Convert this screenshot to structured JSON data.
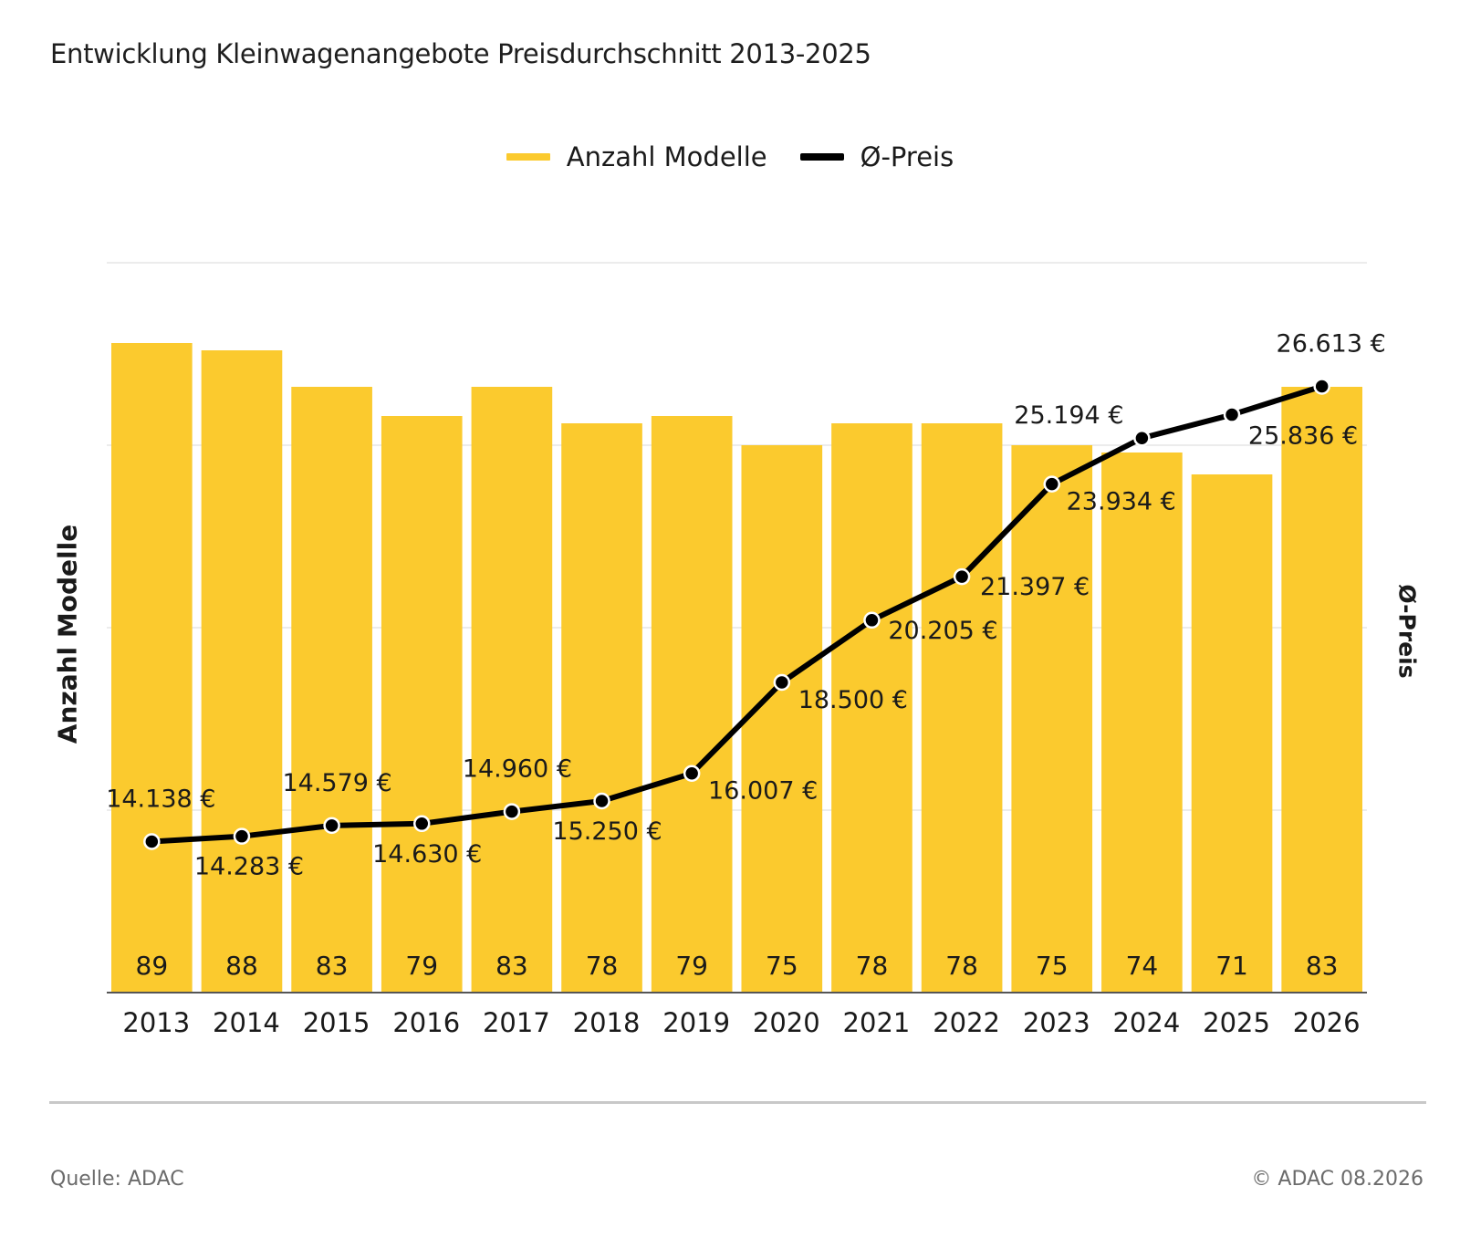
{
  "title": "Entwicklung Kleinwagenangebote Preisdurchschnitt 2013-2025",
  "legend": {
    "bars_label": "Anzahl Modelle",
    "line_label": "Ø-Preis"
  },
  "footer": {
    "source": "Quelle: ADAC",
    "copyright": "© ADAC 08.2026"
  },
  "colors": {
    "bar": "#fbca2e",
    "line": "#000000",
    "grid": "#e6e6e6"
  },
  "chart_data": {
    "type": "bar",
    "title": "Entwicklung Kleinwagenangebote Preisdurchschnitt 2013-2025",
    "xlabel": "",
    "ylabel": "Anzahl Modelle",
    "y2label": "Ø-Preis",
    "categories": [
      "2013",
      "2014",
      "2015",
      "2016",
      "2017",
      "2018",
      "2019",
      "2020",
      "2021",
      "2022",
      "2023",
      "2024",
      "2025",
      "2026"
    ],
    "ylim": [
      0,
      100
    ],
    "y2lim": [
      10000,
      30000
    ],
    "grid": true,
    "legend_position": "top",
    "series": [
      {
        "name": "Anzahl Modelle",
        "type": "bar",
        "values": [
          89,
          88,
          83,
          79,
          83,
          78,
          79,
          75,
          78,
          78,
          75,
          74,
          71,
          83
        ],
        "labels": [
          "89",
          "88",
          "83",
          "79",
          "83",
          "78",
          "79",
          "75",
          "78",
          "78",
          "75",
          "74",
          "71",
          "83"
        ]
      },
      {
        "name": "Ø-Preis",
        "type": "line",
        "values": [
          14138,
          14283,
          14579,
          14630,
          14960,
          15250,
          16007,
          18500,
          20205,
          21397,
          23934,
          25194,
          25836,
          26613
        ],
        "labels": [
          "14.138 €",
          "14.283 €",
          "14.579 €",
          "14.630 €",
          "14.960 €",
          "15.250 €",
          "16.007 €",
          "18.500 €",
          "20.205 €",
          "21.397 €",
          "23.934 €",
          "25.194 €",
          "25.836 €",
          "26.613 €"
        ]
      }
    ]
  }
}
